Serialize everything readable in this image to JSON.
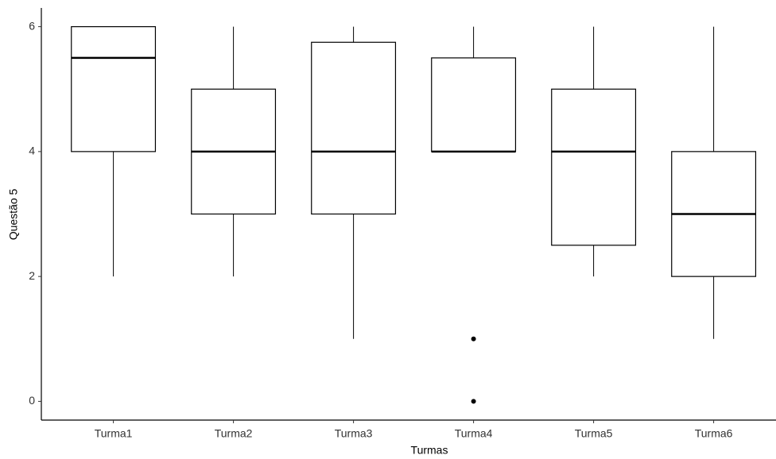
{
  "chart_data": {
    "type": "boxplot",
    "x_label": "Turmas",
    "y_label": "Questão 5",
    "categories": [
      "Turma1",
      "Turma2",
      "Turma3",
      "Turma4",
      "Turma5",
      "Turma6"
    ],
    "boxes": [
      {
        "min": 2,
        "q1": 4,
        "median": 5.5,
        "q3": 6,
        "max": 6,
        "outliers": []
      },
      {
        "min": 2,
        "q1": 3,
        "median": 4,
        "q3": 5,
        "max": 6,
        "outliers": []
      },
      {
        "min": 1,
        "q1": 3,
        "median": 4,
        "q3": 5.75,
        "max": 6,
        "outliers": []
      },
      {
        "min": 4,
        "q1": 4,
        "median": 4,
        "q3": 5.5,
        "max": 6,
        "outliers": [
          1,
          0
        ]
      },
      {
        "min": 2,
        "q1": 2.5,
        "median": 4,
        "q3": 5,
        "max": 6,
        "outliers": []
      },
      {
        "min": 1,
        "q1": 2,
        "median": 3,
        "q3": 4,
        "max": 6,
        "outliers": []
      }
    ],
    "color": "#000000",
    "ylim": [
      -0.3,
      6.3
    ],
    "yticks": [
      0,
      2,
      4,
      6
    ],
    "grid": false
  }
}
